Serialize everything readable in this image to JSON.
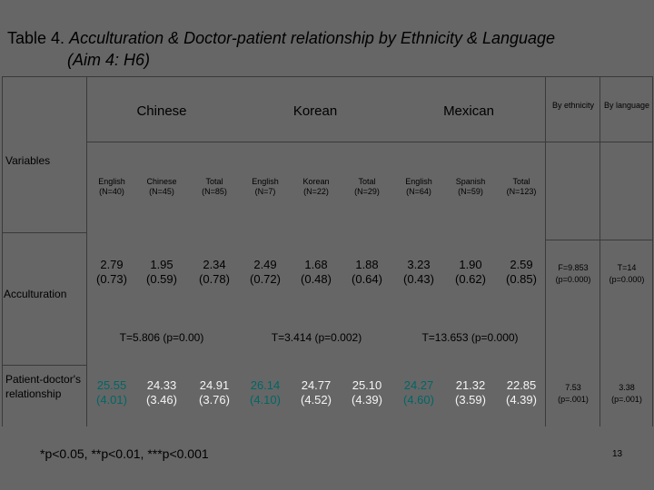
{
  "title": {
    "prefix": "Table 4.",
    "line1": "Acculturation & Doctor-patient relationship by Ethnicity & Language",
    "line2": "(Aim 4: H6)"
  },
  "table": {
    "variables_label": "Variables",
    "groups": {
      "chinese": "Chinese",
      "korean": "Korean",
      "mexican": "Mexican",
      "by_ethnicity": "By ethnicity",
      "by_language": "By language"
    },
    "subheaders": [
      "English (N=40)",
      "Chinese (N=45)",
      "Total (N=85)",
      "English (N=7)",
      "Korean (N=22)",
      "Total (N=29)",
      "English (N=64)",
      "Spanish (N=59)",
      "Total (N=123)"
    ],
    "rows": {
      "acculturation": {
        "label": "Acculturation",
        "values": [
          {
            "mean": "2.79",
            "sd": "(0.73)"
          },
          {
            "mean": "1.95",
            "sd": "(0.59)"
          },
          {
            "mean": "2.34",
            "sd": "(0.78)"
          },
          {
            "mean": "2.49",
            "sd": "(0.72)"
          },
          {
            "mean": "1.68",
            "sd": "(0.48)"
          },
          {
            "mean": "1.88",
            "sd": "(0.64)"
          },
          {
            "mean": "3.23",
            "sd": "(0.43)"
          },
          {
            "mean": "1.90",
            "sd": "(0.62)"
          },
          {
            "mean": "2.59",
            "sd": "(0.85)"
          }
        ],
        "by_ethnicity": {
          "stat": "F=9.853",
          "p": "(p=0.000)"
        },
        "by_language": {
          "stat": "T=14",
          "p": "(p=0.000)"
        },
        "tests": {
          "chinese": "T=5.806 (p=0.00)",
          "korean": "T=3.414 (p=0.002)",
          "mexican": "T=13.653 (p=0.000)"
        }
      },
      "patient_doctor": {
        "label": "Patient-doctor's relationship",
        "values": [
          {
            "mean": "25.55",
            "sd": "(4.01)",
            "color": "#006666"
          },
          {
            "mean": "24.33",
            "sd": "(3.46)",
            "color": "#f5f5f5"
          },
          {
            "mean": "24.91",
            "sd": "(3.76)",
            "color": "#f5f5f5"
          },
          {
            "mean": "26.14",
            "sd": "(4.10)",
            "color": "#006666"
          },
          {
            "mean": "24.77",
            "sd": "(4.52)",
            "color": "#f5f5f5"
          },
          {
            "mean": "25.10",
            "sd": "(4.39)",
            "color": "#f5f5f5"
          },
          {
            "mean": "24.27",
            "sd": "(4.60)",
            "color": "#006666"
          },
          {
            "mean": "21.32",
            "sd": "(3.59)",
            "color": "#f5f5f5"
          },
          {
            "mean": "22.85",
            "sd": "(4.39)",
            "color": "#f5f5f5"
          }
        ],
        "by_ethnicity": {
          "stat": "7.53",
          "p": "(p=.001)"
        },
        "by_language": {
          "stat": "3.38",
          "p": "(p=.001)"
        }
      }
    }
  },
  "footnote": "*p<0.05, **p<0.01, ***p<0.001",
  "page_number": "13"
}
